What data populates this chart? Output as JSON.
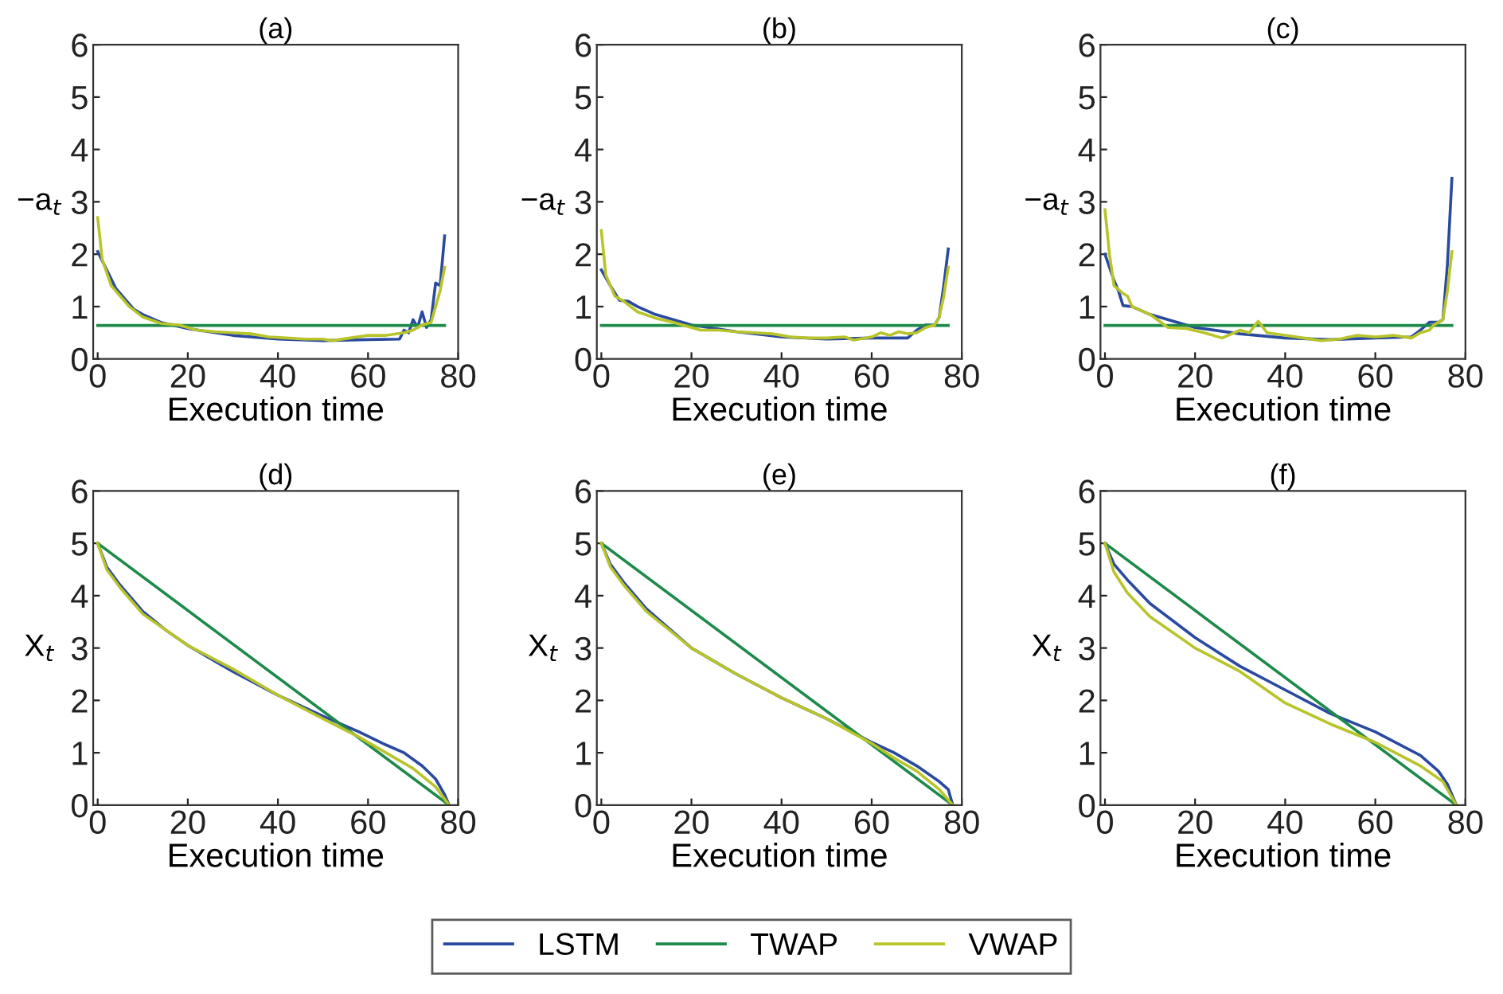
{
  "chart_data": [
    {
      "type": "line",
      "title": "(a)",
      "xlabel": "Execution time",
      "ylabel": "−a$_{t}$",
      "xlim": [
        -1,
        80
      ],
      "ylim": [
        0,
        6
      ],
      "xticks": [
        0,
        20,
        40,
        60,
        80
      ],
      "yticks": [
        0,
        1,
        2,
        3,
        4,
        5,
        6
      ],
      "grid": false,
      "legend": "bottom",
      "series": [
        {
          "name": "LSTM",
          "color": "#2a4aa0",
          "x": [
            0,
            2,
            4,
            6,
            8,
            10,
            14,
            20,
            30,
            40,
            50,
            60,
            67,
            68,
            69,
            70,
            71,
            72,
            73,
            74,
            75,
            76,
            77
          ],
          "values": [
            2.05,
            1.7,
            1.35,
            1.15,
            0.95,
            0.85,
            0.7,
            0.58,
            0.45,
            0.38,
            0.35,
            0.37,
            0.38,
            0.55,
            0.5,
            0.75,
            0.6,
            0.9,
            0.6,
            0.75,
            1.45,
            1.4,
            2.35
          ]
        },
        {
          "name": "TWAP",
          "color": "#1e8a4a",
          "x": [
            0,
            77
          ],
          "values": [
            0.64,
            0.64
          ]
        },
        {
          "name": "VWAP",
          "color": "#b8c42a",
          "x": [
            0,
            1,
            3,
            5,
            7,
            10,
            14,
            18,
            22,
            26,
            30,
            34,
            38,
            42,
            46,
            50,
            52,
            56,
            60,
            64,
            68,
            70,
            72,
            74,
            75,
            76,
            77
          ],
          "values": [
            2.7,
            1.9,
            1.4,
            1.2,
            1.0,
            0.8,
            0.68,
            0.65,
            0.55,
            0.52,
            0.5,
            0.48,
            0.42,
            0.4,
            0.38,
            0.38,
            0.35,
            0.4,
            0.45,
            0.45,
            0.5,
            0.55,
            0.65,
            0.7,
            1.0,
            1.3,
            1.75
          ]
        }
      ]
    },
    {
      "type": "line",
      "title": "(b)",
      "xlabel": "Execution time",
      "ylabel": "−a$_{t}$",
      "xlim": [
        -1,
        80
      ],
      "ylim": [
        0,
        6
      ],
      "xticks": [
        0,
        20,
        40,
        60,
        80
      ],
      "yticks": [
        0,
        1,
        2,
        3,
        4,
        5,
        6
      ],
      "grid": false,
      "series": [
        {
          "color": "#2a4aa0",
          "x": [
            0,
            2,
            4,
            6,
            8,
            12,
            20,
            30,
            40,
            50,
            60,
            68,
            70,
            72,
            74,
            75,
            76,
            77
          ],
          "values": [
            1.7,
            1.4,
            1.12,
            1.1,
            1.0,
            0.85,
            0.65,
            0.52,
            0.42,
            0.38,
            0.4,
            0.4,
            0.55,
            0.65,
            0.65,
            0.8,
            1.4,
            2.1
          ]
        },
        {
          "color": "#1e8a4a",
          "x": [
            0,
            77
          ],
          "values": [
            0.64,
            0.64
          ]
        },
        {
          "color": "#b8c42a",
          "x": [
            0,
            1,
            3,
            5,
            8,
            12,
            16,
            20,
            22,
            26,
            30,
            34,
            38,
            42,
            46,
            50,
            54,
            56,
            60,
            62,
            64,
            66,
            68,
            70,
            72,
            74,
            75,
            76,
            77
          ],
          "values": [
            2.45,
            1.6,
            1.2,
            1.1,
            0.9,
            0.78,
            0.7,
            0.6,
            0.55,
            0.55,
            0.52,
            0.5,
            0.48,
            0.42,
            0.4,
            0.4,
            0.42,
            0.36,
            0.42,
            0.5,
            0.45,
            0.52,
            0.48,
            0.5,
            0.6,
            0.65,
            0.8,
            1.2,
            1.75
          ]
        }
      ]
    },
    {
      "type": "line",
      "title": "(c)",
      "xlabel": "Execution time",
      "ylabel": "−a$_{t}$",
      "xlim": [
        -1,
        80
      ],
      "ylim": [
        0,
        6
      ],
      "xticks": [
        0,
        20,
        40,
        60,
        80
      ],
      "yticks": [
        0,
        1,
        2,
        3,
        4,
        5,
        6
      ],
      "grid": false,
      "series": [
        {
          "color": "#2a4aa0",
          "x": [
            0,
            2,
            3,
            4,
            6,
            10,
            20,
            30,
            40,
            50,
            60,
            68,
            70,
            72,
            74,
            75,
            76,
            77
          ],
          "values": [
            2.0,
            1.5,
            1.3,
            1.02,
            1.0,
            0.85,
            0.6,
            0.48,
            0.4,
            0.37,
            0.4,
            0.42,
            0.55,
            0.7,
            0.7,
            0.75,
            1.8,
            3.45
          ]
        },
        {
          "color": "#1e8a4a",
          "x": [
            0,
            77
          ],
          "values": [
            0.64,
            0.64
          ]
        },
        {
          "color": "#b8c42a",
          "x": [
            0,
            1,
            2,
            4,
            5,
            6,
            10,
            14,
            18,
            22,
            26,
            30,
            32,
            34,
            36,
            40,
            44,
            48,
            52,
            56,
            60,
            64,
            68,
            70,
            72,
            73,
            75,
            76,
            77
          ],
          "values": [
            2.85,
            2.0,
            1.4,
            1.25,
            1.2,
            1.0,
            0.85,
            0.6,
            0.58,
            0.5,
            0.4,
            0.55,
            0.5,
            0.72,
            0.5,
            0.45,
            0.4,
            0.35,
            0.38,
            0.45,
            0.42,
            0.45,
            0.4,
            0.5,
            0.55,
            0.65,
            0.75,
            1.3,
            2.05
          ]
        }
      ]
    },
    {
      "type": "line",
      "title": "(d)",
      "xlabel": "Execution time",
      "ylabel": "X$_{t}$",
      "xlim": [
        -1,
        80
      ],
      "ylim": [
        0,
        6
      ],
      "xticks": [
        0,
        20,
        40,
        60,
        80
      ],
      "yticks": [
        0,
        1,
        2,
        3,
        4,
        5,
        6
      ],
      "grid": false,
      "series": [
        {
          "color": "#2a4aa0",
          "x": [
            0,
            2,
            5,
            10,
            15,
            20,
            30,
            40,
            50,
            58,
            64,
            68,
            72,
            75,
            77,
            78
          ],
          "values": [
            5,
            4.55,
            4.2,
            3.7,
            3.35,
            3.05,
            2.55,
            2.1,
            1.7,
            1.4,
            1.15,
            1.0,
            0.75,
            0.5,
            0.2,
            0
          ]
        },
        {
          "color": "#1e8a4a",
          "x": [
            0,
            78
          ],
          "values": [
            5,
            0
          ]
        },
        {
          "color": "#b8c42a",
          "x": [
            0,
            2,
            5,
            10,
            20,
            30,
            40,
            50,
            58,
            64,
            70,
            75,
            78
          ],
          "values": [
            5,
            4.5,
            4.15,
            3.65,
            3.05,
            2.6,
            2.1,
            1.65,
            1.3,
            1.0,
            0.7,
            0.35,
            0
          ]
        }
      ]
    },
    {
      "type": "line",
      "title": "(e)",
      "xlabel": "Execution time",
      "ylabel": "X$_{t}$",
      "xlim": [
        -1,
        80
      ],
      "ylim": [
        0,
        6
      ],
      "xticks": [
        0,
        20,
        40,
        60,
        80
      ],
      "yticks": [
        0,
        1,
        2,
        3,
        4,
        5,
        6
      ],
      "grid": false,
      "series": [
        {
          "color": "#2a4aa0",
          "x": [
            0,
            2,
            5,
            10,
            20,
            30,
            40,
            50,
            60,
            65,
            70,
            75,
            77,
            78
          ],
          "values": [
            5,
            4.6,
            4.25,
            3.75,
            3.0,
            2.5,
            2.05,
            1.65,
            1.2,
            1.0,
            0.75,
            0.45,
            0.3,
            0
          ]
        },
        {
          "color": "#1e8a4a",
          "x": [
            0,
            78
          ],
          "values": [
            5,
            0
          ]
        },
        {
          "color": "#b8c42a",
          "x": [
            0,
            2,
            5,
            10,
            20,
            30,
            40,
            50,
            60,
            65,
            70,
            75,
            78
          ],
          "values": [
            5,
            4.55,
            4.2,
            3.7,
            3.0,
            2.5,
            2.05,
            1.65,
            1.18,
            0.9,
            0.65,
            0.3,
            0
          ]
        }
      ]
    },
    {
      "type": "line",
      "title": "(f)",
      "xlabel": "Execution time",
      "ylabel": "X$_{t}$",
      "xlim": [
        -1,
        80
      ],
      "ylim": [
        0,
        6
      ],
      "xticks": [
        0,
        20,
        40,
        60,
        80
      ],
      "yticks": [
        0,
        1,
        2,
        3,
        4,
        5,
        6
      ],
      "grid": false,
      "series": [
        {
          "color": "#2a4aa0",
          "x": [
            0,
            2,
            5,
            10,
            20,
            30,
            40,
            50,
            60,
            70,
            74,
            76,
            77,
            78
          ],
          "values": [
            5,
            4.6,
            4.3,
            3.85,
            3.2,
            2.65,
            2.2,
            1.75,
            1.4,
            0.95,
            0.65,
            0.4,
            0.2,
            0
          ]
        },
        {
          "color": "#1e8a4a",
          "x": [
            0,
            78
          ],
          "values": [
            5,
            0
          ]
        },
        {
          "color": "#b8c42a",
          "x": [
            0,
            2,
            5,
            10,
            20,
            30,
            40,
            50,
            60,
            70,
            75,
            78
          ],
          "values": [
            5,
            4.45,
            4.05,
            3.6,
            3.0,
            2.55,
            1.95,
            1.55,
            1.2,
            0.75,
            0.45,
            0
          ]
        }
      ]
    }
  ]
}
